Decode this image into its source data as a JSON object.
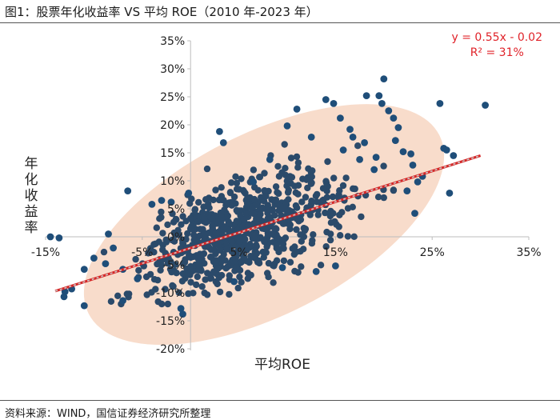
{
  "figure": {
    "title": "图1：股票年化收益率 VS 平均 ROE（2010 年-2023 年）",
    "source": "资料来源：WIND，国信证券经济研究所整理"
  },
  "colors": {
    "point": "#1f4e79",
    "point_dense": "#2b4a6a",
    "ellipse": "#f8dccb",
    "trend": "#d62828",
    "trend_dash": "#c9c9c9"
  },
  "chart_data": {
    "type": "scatter",
    "title": "",
    "xlabel": "平均ROE",
    "ylabel": "年化收益率",
    "xlim": [
      -0.15,
      0.35
    ],
    "ylim": [
      -0.2,
      0.35
    ],
    "x_ticks": [
      -0.15,
      -0.05,
      0.05,
      0.15,
      0.25,
      0.35
    ],
    "x_tick_labels": [
      "-15%",
      "-5%",
      "5%",
      "15%",
      "25%",
      "35%"
    ],
    "y_ticks": [
      -0.2,
      -0.15,
      -0.1,
      -0.05,
      0.0,
      0.05,
      0.1,
      0.15,
      0.2,
      0.25,
      0.3,
      0.35
    ],
    "y_tick_labels": [
      "-20%",
      "-15%",
      "-10%",
      "-5%",
      "0%",
      "5%",
      "10%",
      "15%",
      "20%",
      "25%",
      "30%",
      "35%"
    ],
    "grid": false,
    "annotation": {
      "equation": "y = 0.55x - 0.02",
      "r2": "R² = 31%"
    },
    "trendline": {
      "slope": 0.55,
      "intercept": -0.02,
      "x_range": [
        -0.14,
        0.3
      ]
    },
    "ellipse": {
      "center": [
        0.076,
        0.022
      ],
      "semi_major": 0.25,
      "semi_minor": 0.115,
      "angle_deg": 27
    },
    "cluster": {
      "count": 720,
      "center": [
        0.055,
        0.01
      ],
      "sd_x": 0.052,
      "sd_y": 0.045,
      "slope": 0.55,
      "resid_sd": 0.046
    },
    "points": [
      [
        -0.145,
        0.0
      ],
      [
        -0.136,
        -0.002
      ],
      [
        -0.131,
        -0.107
      ],
      [
        -0.13,
        -0.098
      ],
      [
        -0.11,
        -0.123
      ],
      [
        -0.123,
        -0.093
      ],
      [
        -0.11,
        -0.058
      ],
      [
        -0.1,
        -0.038
      ],
      [
        -0.088,
        -0.048
      ],
      [
        -0.085,
        0.005
      ],
      [
        -0.08,
        -0.02
      ],
      [
        -0.07,
        -0.058
      ],
      [
        -0.07,
        -0.114
      ],
      [
        -0.065,
        0.082
      ],
      [
        -0.055,
        -0.075
      ],
      [
        -0.04,
        0.058
      ],
      [
        -0.03,
        0.065
      ],
      [
        -0.02,
        0.062
      ],
      [
        -0.01,
        -0.128
      ],
      [
        -0.008,
        -0.138
      ],
      [
        -0.002,
        0.078
      ],
      [
        0.03,
        0.188
      ],
      [
        0.034,
        0.168
      ],
      [
        0.045,
        -0.08
      ],
      [
        0.065,
        0.098
      ],
      [
        0.082,
        0.138
      ],
      [
        0.095,
        -0.055
      ],
      [
        0.1,
        0.198
      ],
      [
        0.11,
        0.228
      ],
      [
        0.125,
        0.178
      ],
      [
        0.13,
        -0.062
      ],
      [
        0.14,
        0.245
      ],
      [
        0.148,
        0.238
      ],
      [
        0.15,
        -0.052
      ],
      [
        0.155,
        0.212
      ],
      [
        0.158,
        0.155
      ],
      [
        0.165,
        0.192
      ],
      [
        0.168,
        0.178
      ],
      [
        0.175,
        0.138
      ],
      [
        0.18,
        0.168
      ],
      [
        0.182,
        0.252
      ],
      [
        0.19,
        0.12
      ],
      [
        0.192,
        0.142
      ],
      [
        0.195,
        0.252
      ],
      [
        0.198,
        0.238
      ],
      [
        0.2,
        0.282
      ],
      [
        0.205,
        0.225
      ],
      [
        0.21,
        0.212
      ],
      [
        0.212,
        0.172
      ],
      [
        0.215,
        0.195
      ],
      [
        0.22,
        0.152
      ],
      [
        0.224,
        0.082
      ],
      [
        0.228,
        0.148
      ],
      [
        0.23,
        0.128
      ],
      [
        0.232,
        0.042
      ],
      [
        0.235,
        0.098
      ],
      [
        0.24,
        0.108
      ],
      [
        0.258,
        0.238
      ],
      [
        0.262,
        0.158
      ],
      [
        0.265,
        0.155
      ],
      [
        0.268,
        0.078
      ],
      [
        0.272,
        0.145
      ],
      [
        0.305,
        0.235
      ]
    ]
  }
}
